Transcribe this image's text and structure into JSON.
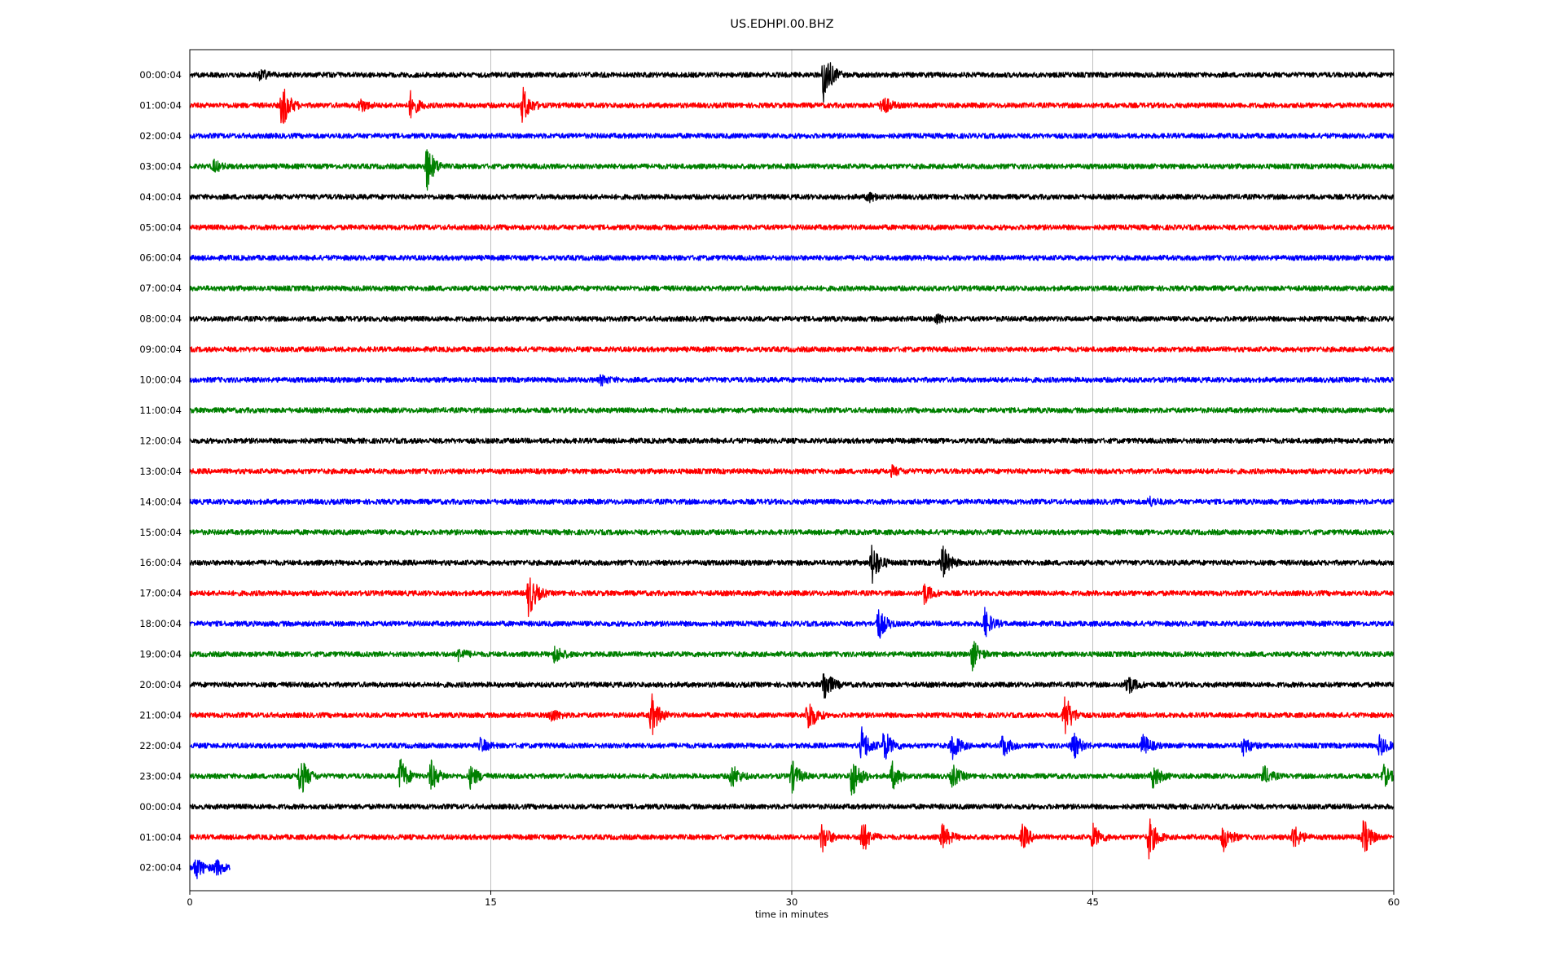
{
  "chart_data": {
    "type": "line",
    "title": "US.EDHPI.00.BHZ",
    "xlabel": "time in minutes",
    "ylabel": "",
    "xlim": [
      0,
      60
    ],
    "x_ticks": [
      "0",
      "15",
      "30",
      "45",
      "60"
    ],
    "x_tick_values": [
      0,
      15,
      30,
      45,
      60
    ],
    "grid": "vertical-at-major-ticks",
    "color_cycle": [
      "#000000",
      "#ff0000",
      "#0000ff",
      "#008000"
    ],
    "rows": [
      {
        "label": "00:00:04",
        "color": "#000000",
        "end_minute": 60,
        "events": [
          {
            "minute": 3.5,
            "amp": 0.5
          },
          {
            "minute": 31.6,
            "amp": 2.6
          }
        ]
      },
      {
        "label": "01:00:04",
        "color": "#ff0000",
        "end_minute": 60,
        "events": [
          {
            "minute": 4.6,
            "amp": 2.1
          },
          {
            "minute": 8.5,
            "amp": 0.6
          },
          {
            "minute": 11.0,
            "amp": 1.1
          },
          {
            "minute": 16.6,
            "amp": 1.6
          },
          {
            "minute": 34.5,
            "amp": 1.0
          }
        ]
      },
      {
        "label": "02:00:04",
        "color": "#0000ff",
        "end_minute": 60,
        "events": []
      },
      {
        "label": "03:00:04",
        "color": "#008000",
        "end_minute": 60,
        "events": [
          {
            "minute": 1.2,
            "amp": 0.5
          },
          {
            "minute": 11.8,
            "amp": 2.1
          }
        ]
      },
      {
        "label": "04:00:04",
        "color": "#000000",
        "end_minute": 60,
        "events": [
          {
            "minute": 33.8,
            "amp": 0.4
          }
        ]
      },
      {
        "label": "05:00:04",
        "color": "#ff0000",
        "end_minute": 60,
        "events": []
      },
      {
        "label": "06:00:04",
        "color": "#0000ff",
        "end_minute": 60,
        "events": []
      },
      {
        "label": "07:00:04",
        "color": "#008000",
        "end_minute": 60,
        "events": []
      },
      {
        "label": "08:00:04",
        "color": "#000000",
        "end_minute": 60,
        "events": [
          {
            "minute": 37.2,
            "amp": 0.4
          }
        ]
      },
      {
        "label": "09:00:04",
        "color": "#ff0000",
        "end_minute": 60,
        "events": []
      },
      {
        "label": "10:00:04",
        "color": "#0000ff",
        "end_minute": 60,
        "events": [
          {
            "minute": 20.5,
            "amp": 0.4
          }
        ]
      },
      {
        "label": "11:00:04",
        "color": "#008000",
        "end_minute": 60,
        "events": []
      },
      {
        "label": "12:00:04",
        "color": "#000000",
        "end_minute": 60,
        "events": []
      },
      {
        "label": "13:00:04",
        "color": "#ff0000",
        "end_minute": 60,
        "events": [
          {
            "minute": 35.0,
            "amp": 0.4
          }
        ]
      },
      {
        "label": "14:00:04",
        "color": "#0000ff",
        "end_minute": 60,
        "events": [
          {
            "minute": 47.8,
            "amp": 0.4
          }
        ]
      },
      {
        "label": "15:00:04",
        "color": "#008000",
        "end_minute": 60,
        "events": []
      },
      {
        "label": "16:00:04",
        "color": "#000000",
        "end_minute": 60,
        "events": [
          {
            "minute": 34.0,
            "amp": 1.9
          },
          {
            "minute": 37.5,
            "amp": 1.6
          }
        ]
      },
      {
        "label": "17:00:04",
        "color": "#ff0000",
        "end_minute": 60,
        "events": [
          {
            "minute": 16.9,
            "amp": 2.1
          },
          {
            "minute": 36.6,
            "amp": 0.9
          }
        ]
      },
      {
        "label": "18:00:04",
        "color": "#0000ff",
        "end_minute": 60,
        "events": [
          {
            "minute": 34.3,
            "amp": 1.5
          },
          {
            "minute": 39.6,
            "amp": 1.3
          }
        ]
      },
      {
        "label": "19:00:04",
        "color": "#008000",
        "end_minute": 60,
        "events": [
          {
            "minute": 13.4,
            "amp": 0.5
          },
          {
            "minute": 18.2,
            "amp": 0.8
          },
          {
            "minute": 39.0,
            "amp": 1.3
          }
        ]
      },
      {
        "label": "20:00:04",
        "color": "#000000",
        "end_minute": 60,
        "events": [
          {
            "minute": 31.6,
            "amp": 1.6
          },
          {
            "minute": 46.7,
            "amp": 1.0
          }
        ]
      },
      {
        "label": "21:00:04",
        "color": "#ff0000",
        "end_minute": 60,
        "events": [
          {
            "minute": 18.0,
            "amp": 0.6
          },
          {
            "minute": 23.0,
            "amp": 1.9
          },
          {
            "minute": 30.8,
            "amp": 1.7
          },
          {
            "minute": 43.6,
            "amp": 2.0
          }
        ]
      },
      {
        "label": "22:00:04",
        "color": "#0000ff",
        "end_minute": 60,
        "events": [
          {
            "minute": 14.5,
            "amp": 0.6
          },
          {
            "minute": 33.5,
            "amp": 1.6
          },
          {
            "minute": 34.6,
            "amp": 1.5
          },
          {
            "minute": 38.0,
            "amp": 1.3
          },
          {
            "minute": 40.5,
            "amp": 1.0
          },
          {
            "minute": 44.0,
            "amp": 1.3
          },
          {
            "minute": 47.5,
            "amp": 1.0
          },
          {
            "minute": 52.5,
            "amp": 0.8
          },
          {
            "minute": 59.3,
            "amp": 0.9
          }
        ]
      },
      {
        "label": "23:00:04",
        "color": "#008000",
        "end_minute": 60,
        "events": [
          {
            "minute": 5.5,
            "amp": 1.9
          },
          {
            "minute": 10.5,
            "amp": 1.6
          },
          {
            "minute": 12.0,
            "amp": 1.4
          },
          {
            "minute": 14.0,
            "amp": 1.0
          },
          {
            "minute": 27.0,
            "amp": 1.1
          },
          {
            "minute": 30.0,
            "amp": 1.4
          },
          {
            "minute": 33.0,
            "amp": 2.0
          },
          {
            "minute": 35.0,
            "amp": 1.2
          },
          {
            "minute": 38.0,
            "amp": 1.0
          },
          {
            "minute": 48.0,
            "amp": 1.1
          },
          {
            "minute": 53.5,
            "amp": 0.9
          },
          {
            "minute": 59.5,
            "amp": 0.9
          }
        ]
      },
      {
        "label": "00:00:04",
        "color": "#000000",
        "end_minute": 60,
        "events": []
      },
      {
        "label": "01:00:04",
        "color": "#ff0000",
        "end_minute": 60,
        "events": [
          {
            "minute": 31.5,
            "amp": 1.3
          },
          {
            "minute": 33.5,
            "amp": 1.6
          },
          {
            "minute": 37.5,
            "amp": 1.2
          },
          {
            "minute": 41.5,
            "amp": 1.1
          },
          {
            "minute": 45.0,
            "amp": 1.1
          },
          {
            "minute": 47.8,
            "amp": 1.8
          },
          {
            "minute": 51.5,
            "amp": 1.2
          },
          {
            "minute": 55.0,
            "amp": 1.1
          },
          {
            "minute": 58.5,
            "amp": 1.6
          }
        ]
      },
      {
        "label": "02:00:04",
        "color": "#0000ff",
        "end_minute": 2.0,
        "events": [
          {
            "minute": 0.3,
            "amp": 1.0
          },
          {
            "minute": 1.3,
            "amp": 0.8
          }
        ]
      }
    ]
  }
}
